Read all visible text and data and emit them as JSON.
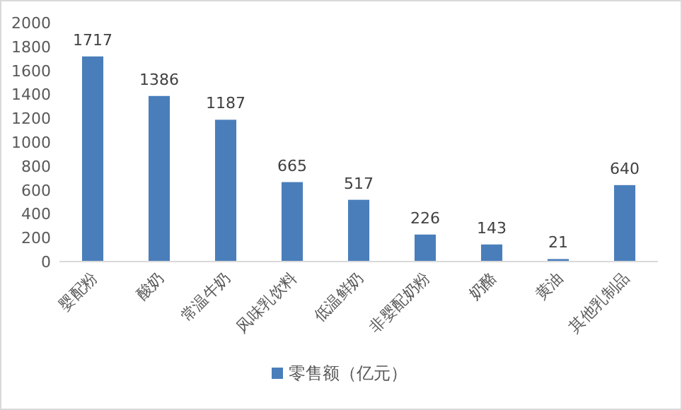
{
  "chart_data": {
    "type": "bar",
    "categories": [
      "婴配粉",
      "酸奶",
      "常温牛奶",
      "风味乳饮料",
      "低温鲜奶",
      "非婴配奶粉",
      "奶酪",
      "黄油",
      "其他乳制品"
    ],
    "series": [
      {
        "name": "零售额（亿元）",
        "color": "#4a7ebb",
        "values": [
          1717,
          1386,
          1187,
          665,
          517,
          226,
          143,
          21,
          640
        ]
      }
    ],
    "ylim": [
      0,
      2000
    ],
    "yticks": [
      0,
      200,
      400,
      600,
      800,
      1000,
      1200,
      1400,
      1600,
      1800,
      2000
    ],
    "data_labels": true,
    "legend": "bottom"
  }
}
